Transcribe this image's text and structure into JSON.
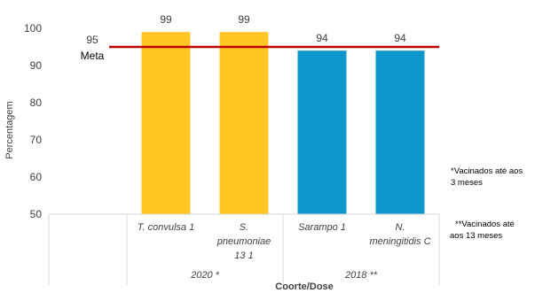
{
  "chart_data": {
    "type": "bar",
    "title": "",
    "xlabel": "Coorte/Dose",
    "ylabel": "Percentagem",
    "ylim": [
      50,
      100
    ],
    "yticks": [
      50,
      60,
      70,
      80,
      90,
      100
    ],
    "grid": false,
    "categories": [
      [
        "T. convulsa 1"
      ],
      [
        "S.",
        "pneumoniae",
        "13 1"
      ],
      [
        "Sarampo 1"
      ],
      [
        "N.",
        "meningitidis C"
      ]
    ],
    "values": [
      99,
      99,
      94,
      94
    ],
    "value_labels": [
      "99",
      "99",
      "94",
      "94"
    ],
    "bar_colors": [
      "#FFC623",
      "#FFC623",
      "#0E97CC",
      "#0E97CC"
    ],
    "groups": [
      {
        "label": "2020 *",
        "categories": [
          0,
          1
        ]
      },
      {
        "label": "2018 **",
        "categories": [
          2,
          3
        ]
      }
    ],
    "reference_line": {
      "value": 95,
      "label": "Meta",
      "value_label": "95",
      "color": "#C00000"
    },
    "notes": [
      [
        "*Vacinados até aos",
        "3 meses"
      ],
      [
        "**Vacinados até",
        "aos 13 meses"
      ]
    ]
  }
}
